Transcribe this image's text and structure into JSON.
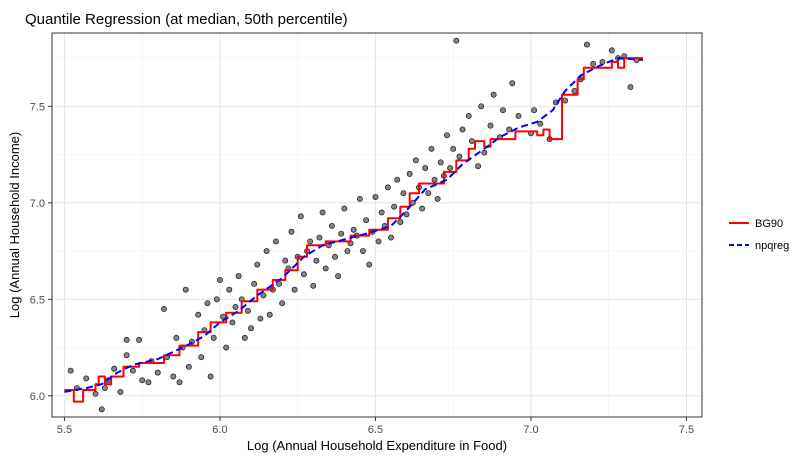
{
  "chart_data": {
    "type": "scatter",
    "title": "Quantile Regression (at median, 50th percentile)",
    "xlabel": "Log (Annual Household Expenditure in Food)",
    "ylabel": "Log (Annual Household Income)",
    "xlim": [
      5.46,
      7.55
    ],
    "ylim": [
      5.89,
      7.88
    ],
    "x_ticks": [
      "5.5",
      "6.0",
      "6.5",
      "7.0",
      "7.5"
    ],
    "y_ticks": [
      "6.0",
      "6.5",
      "7.0",
      "7.5"
    ],
    "grid": true,
    "legend_placement": "right",
    "series": [
      {
        "name": "BG90",
        "type": "step",
        "color": "#ff0000",
        "points": [
          [
            5.5,
            6.03
          ],
          [
            5.53,
            6.03
          ],
          [
            5.53,
            5.97
          ],
          [
            5.56,
            5.97
          ],
          [
            5.56,
            6.03
          ],
          [
            5.6,
            6.03
          ],
          [
            5.6,
            6.06
          ],
          [
            5.61,
            6.06
          ],
          [
            5.61,
            6.1
          ],
          [
            5.63,
            6.1
          ],
          [
            5.63,
            6.06
          ],
          [
            5.65,
            6.06
          ],
          [
            5.65,
            6.1
          ],
          [
            5.69,
            6.1
          ],
          [
            5.69,
            6.15
          ],
          [
            5.74,
            6.15
          ],
          [
            5.74,
            6.17
          ],
          [
            5.82,
            6.17
          ],
          [
            5.82,
            6.21
          ],
          [
            5.87,
            6.21
          ],
          [
            5.87,
            6.26
          ],
          [
            5.93,
            6.26
          ],
          [
            5.93,
            6.33
          ],
          [
            5.97,
            6.33
          ],
          [
            5.97,
            6.38
          ],
          [
            6.02,
            6.38
          ],
          [
            6.02,
            6.43
          ],
          [
            6.07,
            6.43
          ],
          [
            6.07,
            6.49
          ],
          [
            6.12,
            6.49
          ],
          [
            6.12,
            6.55
          ],
          [
            6.17,
            6.55
          ],
          [
            6.17,
            6.6
          ],
          [
            6.21,
            6.6
          ],
          [
            6.21,
            6.65
          ],
          [
            6.25,
            6.65
          ],
          [
            6.25,
            6.72
          ],
          [
            6.28,
            6.72
          ],
          [
            6.28,
            6.78
          ],
          [
            6.34,
            6.78
          ],
          [
            6.34,
            6.8
          ],
          [
            6.42,
            6.8
          ],
          [
            6.42,
            6.83
          ],
          [
            6.48,
            6.83
          ],
          [
            6.48,
            6.86
          ],
          [
            6.54,
            6.86
          ],
          [
            6.54,
            6.92
          ],
          [
            6.58,
            6.92
          ],
          [
            6.58,
            6.98
          ],
          [
            6.61,
            6.98
          ],
          [
            6.61,
            7.05
          ],
          [
            6.64,
            7.05
          ],
          [
            6.64,
            7.1
          ],
          [
            6.72,
            7.1
          ],
          [
            6.72,
            7.16
          ],
          [
            6.76,
            7.16
          ],
          [
            6.76,
            7.22
          ],
          [
            6.8,
            7.22
          ],
          [
            6.8,
            7.28
          ],
          [
            6.82,
            7.28
          ],
          [
            6.82,
            7.32
          ],
          [
            6.85,
            7.32
          ],
          [
            6.85,
            7.29
          ],
          [
            6.87,
            7.29
          ],
          [
            6.87,
            7.33
          ],
          [
            6.95,
            7.33
          ],
          [
            6.95,
            7.37
          ],
          [
            7.02,
            7.37
          ],
          [
            7.02,
            7.35
          ],
          [
            7.04,
            7.35
          ],
          [
            7.04,
            7.38
          ],
          [
            7.06,
            7.38
          ],
          [
            7.06,
            7.33
          ],
          [
            7.1,
            7.33
          ],
          [
            7.1,
            7.56
          ],
          [
            7.15,
            7.56
          ],
          [
            7.15,
            7.64
          ],
          [
            7.17,
            7.64
          ],
          [
            7.17,
            7.7
          ],
          [
            7.26,
            7.7
          ],
          [
            7.26,
            7.73
          ],
          [
            7.28,
            7.73
          ],
          [
            7.28,
            7.7
          ],
          [
            7.3,
            7.7
          ],
          [
            7.3,
            7.75
          ],
          [
            7.36,
            7.75
          ]
        ]
      },
      {
        "name": "npqreg",
        "type": "line",
        "dashed": true,
        "color": "#0000ff",
        "points": [
          [
            5.5,
            6.02
          ],
          [
            5.57,
            6.04
          ],
          [
            5.62,
            6.06
          ],
          [
            5.67,
            6.12
          ],
          [
            5.72,
            6.16
          ],
          [
            5.8,
            6.19
          ],
          [
            5.88,
            6.25
          ],
          [
            5.95,
            6.31
          ],
          [
            6.0,
            6.38
          ],
          [
            6.06,
            6.44
          ],
          [
            6.12,
            6.52
          ],
          [
            6.2,
            6.61
          ],
          [
            6.27,
            6.72
          ],
          [
            6.33,
            6.78
          ],
          [
            6.4,
            6.81
          ],
          [
            6.47,
            6.84
          ],
          [
            6.55,
            6.88
          ],
          [
            6.6,
            6.96
          ],
          [
            6.66,
            7.07
          ],
          [
            6.73,
            7.12
          ],
          [
            6.78,
            7.2
          ],
          [
            6.85,
            7.28
          ],
          [
            6.9,
            7.34
          ],
          [
            6.96,
            7.39
          ],
          [
            7.02,
            7.42
          ],
          [
            7.07,
            7.48
          ],
          [
            7.11,
            7.58
          ],
          [
            7.16,
            7.66
          ],
          [
            7.22,
            7.71
          ],
          [
            7.28,
            7.75
          ],
          [
            7.36,
            7.74
          ]
        ]
      }
    ],
    "points": [
      [
        5.52,
        6.13
      ],
      [
        5.54,
        6.04
      ],
      [
        5.57,
        6.09
      ],
      [
        5.6,
        6.01
      ],
      [
        5.62,
        5.93
      ],
      [
        5.63,
        6.04
      ],
      [
        5.64,
        6.08
      ],
      [
        5.66,
        6.14
      ],
      [
        5.68,
        6.02
      ],
      [
        5.7,
        6.21
      ],
      [
        5.7,
        6.29
      ],
      [
        5.72,
        6.13
      ],
      [
        5.74,
        6.29
      ],
      [
        5.75,
        6.08
      ],
      [
        5.77,
        6.07
      ],
      [
        5.78,
        6.18
      ],
      [
        5.8,
        6.12
      ],
      [
        5.82,
        6.45
      ],
      [
        5.83,
        6.2
      ],
      [
        5.85,
        6.1
      ],
      [
        5.86,
        6.3
      ],
      [
        5.87,
        6.07
      ],
      [
        5.88,
        6.25
      ],
      [
        5.89,
        6.55
      ],
      [
        5.9,
        6.15
      ],
      [
        5.91,
        6.28
      ],
      [
        5.93,
        6.42
      ],
      [
        5.94,
        6.2
      ],
      [
        5.95,
        6.34
      ],
      [
        5.96,
        6.48
      ],
      [
        5.97,
        6.1
      ],
      [
        5.98,
        6.3
      ],
      [
        5.99,
        6.5
      ],
      [
        6.0,
        6.6
      ],
      [
        6.01,
        6.41
      ],
      [
        6.02,
        6.25
      ],
      [
        6.03,
        6.55
      ],
      [
        6.04,
        6.38
      ],
      [
        6.05,
        6.46
      ],
      [
        6.06,
        6.62
      ],
      [
        6.07,
        6.5
      ],
      [
        6.08,
        6.3
      ],
      [
        6.09,
        6.44
      ],
      [
        6.1,
        6.35
      ],
      [
        6.11,
        6.58
      ],
      [
        6.12,
        6.68
      ],
      [
        6.13,
        6.4
      ],
      [
        6.14,
        6.52
      ],
      [
        6.15,
        6.75
      ],
      [
        6.16,
        6.42
      ],
      [
        6.17,
        6.55
      ],
      [
        6.18,
        6.8
      ],
      [
        6.19,
        6.58
      ],
      [
        6.2,
        6.48
      ],
      [
        6.21,
        6.7
      ],
      [
        6.22,
        6.66
      ],
      [
        6.23,
        6.85
      ],
      [
        6.24,
        6.55
      ],
      [
        6.25,
        6.72
      ],
      [
        6.26,
        6.93
      ],
      [
        6.27,
        6.63
      ],
      [
        6.28,
        6.75
      ],
      [
        6.29,
        6.8
      ],
      [
        6.3,
        6.57
      ],
      [
        6.31,
        6.7
      ],
      [
        6.32,
        6.82
      ],
      [
        6.33,
        6.95
      ],
      [
        6.34,
        6.66
      ],
      [
        6.35,
        6.78
      ],
      [
        6.36,
        6.88
      ],
      [
        6.37,
        6.72
      ],
      [
        6.38,
        6.62
      ],
      [
        6.39,
        6.84
      ],
      [
        6.4,
        6.97
      ],
      [
        6.41,
        6.75
      ],
      [
        6.42,
        6.79
      ],
      [
        6.43,
        6.86
      ],
      [
        6.44,
        6.83
      ],
      [
        6.45,
        7.02
      ],
      [
        6.46,
        6.75
      ],
      [
        6.47,
        6.91
      ],
      [
        6.48,
        6.68
      ],
      [
        6.49,
        6.85
      ],
      [
        6.5,
        7.03
      ],
      [
        6.51,
        6.8
      ],
      [
        6.52,
        6.95
      ],
      [
        6.53,
        6.88
      ],
      [
        6.54,
        7.08
      ],
      [
        6.55,
        6.82
      ],
      [
        6.56,
        6.98
      ],
      [
        6.57,
        7.12
      ],
      [
        6.58,
        6.9
      ],
      [
        6.59,
        7.05
      ],
      [
        6.6,
        6.94
      ],
      [
        6.61,
        7.15
      ],
      [
        6.62,
        7.0
      ],
      [
        6.63,
        7.22
      ],
      [
        6.64,
        7.08
      ],
      [
        6.65,
        6.97
      ],
      [
        6.66,
        7.18
      ],
      [
        6.67,
        7.05
      ],
      [
        6.68,
        7.28
      ],
      [
        6.69,
        7.12
      ],
      [
        6.7,
        7.02
      ],
      [
        6.71,
        7.21
      ],
      [
        6.72,
        7.14
      ],
      [
        6.73,
        7.35
      ],
      [
        6.74,
        7.18
      ],
      [
        6.75,
        7.28
      ],
      [
        6.76,
        7.84
      ],
      [
        6.77,
        7.24
      ],
      [
        6.78,
        7.38
      ],
      [
        6.8,
        7.45
      ],
      [
        6.81,
        7.32
      ],
      [
        6.83,
        7.19
      ],
      [
        6.84,
        7.5
      ],
      [
        6.85,
        7.26
      ],
      [
        6.87,
        7.4
      ],
      [
        6.88,
        7.56
      ],
      [
        6.9,
        7.34
      ],
      [
        6.91,
        7.48
      ],
      [
        6.93,
        7.38
      ],
      [
        6.94,
        7.62
      ],
      [
        6.96,
        7.45
      ],
      [
        7.0,
        7.36
      ],
      [
        7.01,
        7.48
      ],
      [
        7.03,
        7.41
      ],
      [
        7.06,
        7.33
      ],
      [
        7.08,
        7.52
      ],
      [
        7.11,
        7.53
      ],
      [
        7.14,
        7.58
      ],
      [
        7.16,
        7.64
      ],
      [
        7.18,
        7.82
      ],
      [
        7.2,
        7.72
      ],
      [
        7.23,
        7.73
      ],
      [
        7.26,
        7.79
      ],
      [
        7.28,
        7.75
      ],
      [
        7.3,
        7.76
      ],
      [
        7.32,
        7.6
      ],
      [
        7.34,
        7.74
      ]
    ]
  }
}
